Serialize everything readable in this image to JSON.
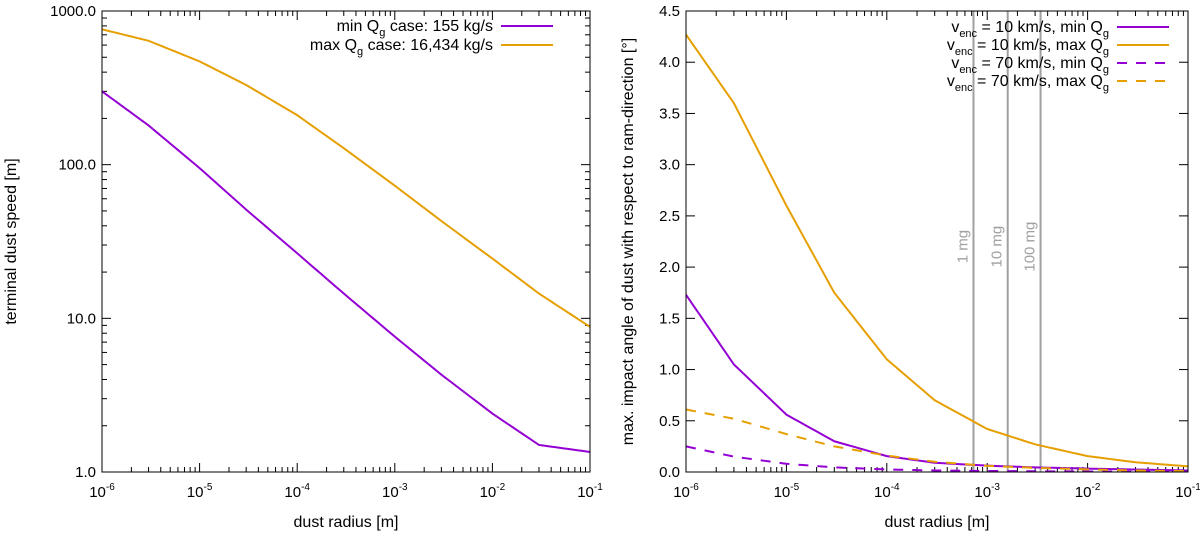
{
  "colors": {
    "purple": "#9400d3",
    "orange": "#e69f00",
    "marker": "#a0a0a0",
    "axis": "#000000",
    "grid": "#a0a0a0"
  },
  "chart_data": [
    {
      "type": "line",
      "xscale": "log",
      "yscale": "log",
      "xlabel": "dust radius [m]",
      "ylabel": "terminal dust speed [m]",
      "xlim": [
        1e-06,
        0.1
      ],
      "ylim": [
        1,
        1000
      ],
      "xticks": [
        {
          "base": "10",
          "exp": "-6"
        },
        {
          "base": "10",
          "exp": "-5"
        },
        {
          "base": "10",
          "exp": "-4"
        },
        {
          "base": "10",
          "exp": "-3"
        },
        {
          "base": "10",
          "exp": "-2"
        },
        {
          "base": "10",
          "exp": "-1"
        }
      ],
      "yticks": [
        "1.0",
        "10.0",
        "100.0",
        "1000.0"
      ],
      "legend_position": "top-right",
      "series": [
        {
          "name_parts": [
            "min Q",
            "g",
            " case: 155 kg/s"
          ],
          "color": "purple",
          "dash": "solid",
          "x": [
            1e-06,
            3e-06,
            1e-05,
            3e-05,
            0.0001,
            0.0003,
            0.001,
            0.003,
            0.01,
            0.03,
            0.1
          ],
          "y": [
            300,
            180,
            95,
            51,
            26.5,
            14.5,
            7.6,
            4.3,
            2.4,
            1.5,
            1.35
          ]
        },
        {
          "name_parts": [
            "max Q",
            "g",
            " case: 16,434 kg/s"
          ],
          "color": "orange",
          "dash": "solid",
          "x": [
            1e-06,
            3e-06,
            1e-05,
            3e-05,
            0.0001,
            0.0003,
            0.001,
            0.003,
            0.01,
            0.03,
            0.1
          ],
          "y": [
            760,
            640,
            470,
            330,
            210,
            128,
            73,
            43,
            24.5,
            14.5,
            8.8
          ]
        }
      ]
    },
    {
      "type": "line",
      "xscale": "log",
      "yscale": "linear",
      "xlabel": "dust radius [m]",
      "ylabel": "max. impact angle of dust with respect to ram-direction [°]",
      "xlim": [
        1e-06,
        0.1
      ],
      "ylim": [
        0,
        4.5
      ],
      "xticks": [
        {
          "base": "10",
          "exp": "-6"
        },
        {
          "base": "10",
          "exp": "-5"
        },
        {
          "base": "10",
          "exp": "-4"
        },
        {
          "base": "10",
          "exp": "-3"
        },
        {
          "base": "10",
          "exp": "-2"
        },
        {
          "base": "10",
          "exp": "-1"
        }
      ],
      "yticks": [
        "0.0",
        "0.5",
        "1.0",
        "1.5",
        "2.0",
        "2.5",
        "3.0",
        "3.5",
        "4.0",
        "4.5"
      ],
      "legend_position": "top-right",
      "series": [
        {
          "name_parts": [
            "v",
            "enc",
            " = 10 km/s, min Q",
            "g"
          ],
          "color": "purple",
          "dash": "solid",
          "x": [
            1e-06,
            3e-06,
            1e-05,
            3e-05,
            0.0001,
            0.0003,
            0.001,
            0.003,
            0.01,
            0.03,
            0.1
          ],
          "y": [
            1.73,
            1.05,
            0.56,
            0.3,
            0.155,
            0.09,
            0.062,
            0.045,
            0.033,
            0.024,
            0.015
          ]
        },
        {
          "name_parts": [
            "v",
            "enc",
            " = 10 km/s, max Q",
            "g"
          ],
          "color": "orange",
          "dash": "solid",
          "x": [
            1e-06,
            3e-06,
            1e-05,
            3e-05,
            0.0001,
            0.0003,
            0.001,
            0.003,
            0.01,
            0.03,
            0.1
          ],
          "y": [
            4.27,
            3.6,
            2.6,
            1.75,
            1.1,
            0.7,
            0.42,
            0.27,
            0.155,
            0.095,
            0.055
          ]
        },
        {
          "name_parts": [
            "v",
            "enc",
            " = 70 km/s, min Q",
            "g"
          ],
          "color": "purple",
          "dash": "dashed",
          "x": [
            1e-06,
            3e-06,
            1e-05,
            3e-05,
            0.0001,
            0.0003,
            0.001,
            0.003,
            0.01,
            0.03,
            0.1
          ],
          "y": [
            0.25,
            0.15,
            0.08,
            0.045,
            0.025,
            0.015,
            0.01,
            0.007,
            0.005,
            0.004,
            0.003
          ]
        },
        {
          "name_parts": [
            "v",
            "enc",
            " = 70 km/s, max Q",
            "g"
          ],
          "color": "orange",
          "dash": "dashed",
          "x": [
            1e-06,
            3e-06,
            1e-05,
            3e-05,
            0.0001,
            0.0003,
            0.001,
            0.003,
            0.01,
            0.03,
            0.1
          ],
          "y": [
            0.61,
            0.52,
            0.37,
            0.25,
            0.16,
            0.1,
            0.06,
            0.04,
            0.025,
            0.015,
            0.008
          ]
        }
      ],
      "markers": [
        {
          "x": 0.00073,
          "label": "1 mg"
        },
        {
          "x": 0.0016,
          "label": "10 mg"
        },
        {
          "x": 0.0034,
          "label": "100 mg"
        }
      ]
    }
  ]
}
